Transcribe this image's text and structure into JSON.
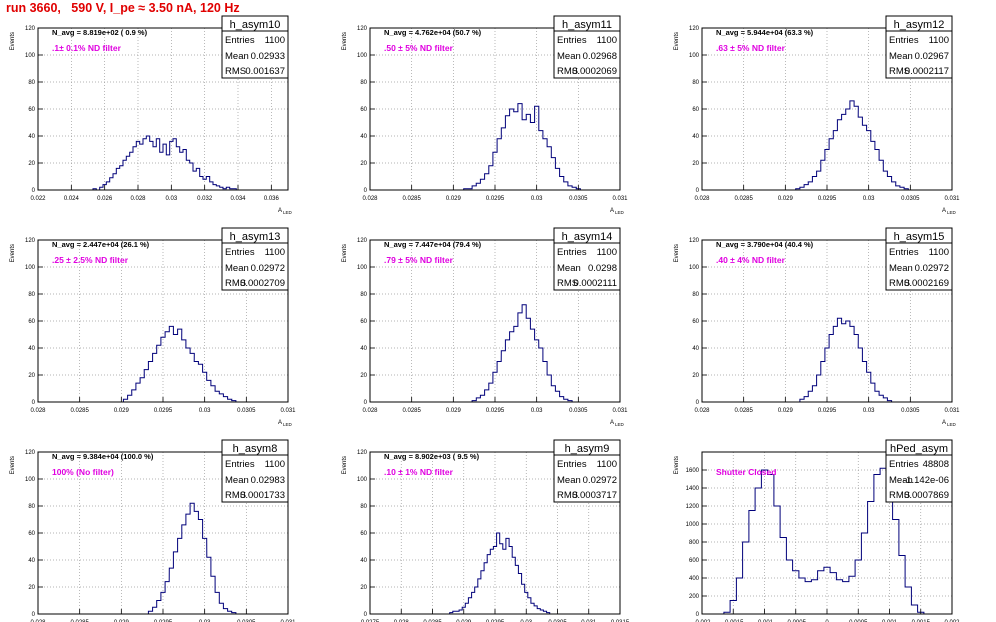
{
  "title": "run 3660,   590 V, I_pe ≈ 3.50 nA, 120 Hz",
  "axis_units": {
    "y": "Events",
    "x_main": "A",
    "x_sub": "LED"
  },
  "stat_labels": {
    "entries": "Entries",
    "mean": "Mean",
    "rms": "RMS"
  },
  "colors": {
    "title": "#e00000",
    "filter_text": "#e000e0",
    "hist": "#00007a",
    "frame": "#000000",
    "grid": "#9a9a9a"
  },
  "chart_data": [
    {
      "type": "bar",
      "name": "h_asym10",
      "annot": "N_avg = 8.819e+02 ( 0.9 %)",
      "filter": ".1± 0.1% ND filter",
      "entries": "1100",
      "mean": "0.02933",
      "rms": "0.001637",
      "xlim": [
        0.022,
        0.037
      ],
      "ylim": [
        0,
        120
      ],
      "xticks": [
        "0.022",
        "0.024",
        "0.026",
        "0.028",
        "0.03",
        "0.032",
        "0.034",
        "0.036"
      ],
      "yticks": [
        "0",
        "20",
        "40",
        "60",
        "80",
        "100",
        "120"
      ],
      "bins": [
        [
          0.0254,
          1
        ],
        [
          0.0256,
          0
        ],
        [
          0.0258,
          2
        ],
        [
          0.026,
          4
        ],
        [
          0.0262,
          6
        ],
        [
          0.0264,
          9
        ],
        [
          0.0266,
          12
        ],
        [
          0.0268,
          16
        ],
        [
          0.027,
          18
        ],
        [
          0.0272,
          22
        ],
        [
          0.0274,
          25
        ],
        [
          0.0276,
          28
        ],
        [
          0.0278,
          32
        ],
        [
          0.028,
          36
        ],
        [
          0.0282,
          34
        ],
        [
          0.0284,
          38
        ],
        [
          0.0286,
          40
        ],
        [
          0.0288,
          36
        ],
        [
          0.029,
          32
        ],
        [
          0.0292,
          38
        ],
        [
          0.0294,
          28
        ],
        [
          0.0296,
          34
        ],
        [
          0.0298,
          26
        ],
        [
          0.03,
          36
        ],
        [
          0.0302,
          38
        ],
        [
          0.0304,
          32
        ],
        [
          0.0306,
          28
        ],
        [
          0.0308,
          30
        ],
        [
          0.031,
          22
        ],
        [
          0.0312,
          20
        ],
        [
          0.0314,
          14
        ],
        [
          0.0316,
          16
        ],
        [
          0.0318,
          10
        ],
        [
          0.032,
          8
        ],
        [
          0.0322,
          10
        ],
        [
          0.0324,
          6
        ],
        [
          0.0326,
          4
        ],
        [
          0.0328,
          3
        ],
        [
          0.033,
          2
        ],
        [
          0.0332,
          1
        ],
        [
          0.0334,
          2
        ],
        [
          0.0336,
          1
        ],
        [
          0.0338,
          1
        ],
        [
          0.034,
          0
        ]
      ]
    },
    {
      "type": "bar",
      "name": "h_asym11",
      "annot": "N_avg = 4.762e+04 (50.7 %)",
      "filter": ".50 ± 5% ND filter",
      "entries": "1100",
      "mean": "0.02968",
      "rms": "0.0002069",
      "xlim": [
        0.028,
        0.031
      ],
      "ylim": [
        0,
        120
      ],
      "xticks": [
        "0.028",
        "0.0285",
        "0.029",
        "0.0295",
        "0.03",
        "0.0305",
        "0.031"
      ],
      "yticks": [
        "0",
        "20",
        "40",
        "60",
        "80",
        "100",
        "120"
      ],
      "bins": [
        [
          0.02915,
          1
        ],
        [
          0.0292,
          1
        ],
        [
          0.02925,
          3
        ],
        [
          0.0293,
          5
        ],
        [
          0.02935,
          8
        ],
        [
          0.0294,
          12
        ],
        [
          0.02945,
          18
        ],
        [
          0.0295,
          28
        ],
        [
          0.02955,
          38
        ],
        [
          0.0296,
          46
        ],
        [
          0.02965,
          55
        ],
        [
          0.0297,
          60
        ],
        [
          0.02975,
          58
        ],
        [
          0.0298,
          64
        ],
        [
          0.02985,
          52
        ],
        [
          0.0299,
          56
        ],
        [
          0.02995,
          50
        ],
        [
          0.03,
          62
        ],
        [
          0.03005,
          44
        ],
        [
          0.0301,
          38
        ],
        [
          0.03015,
          32
        ],
        [
          0.0302,
          24
        ],
        [
          0.03025,
          16
        ],
        [
          0.0303,
          10
        ],
        [
          0.03035,
          6
        ],
        [
          0.0304,
          3
        ],
        [
          0.03045,
          2
        ],
        [
          0.0305,
          1
        ]
      ]
    },
    {
      "type": "bar",
      "name": "h_asym12",
      "annot": "N_avg = 5.944e+04 (63.3 %)",
      "filter": ".63 ± 5% ND filter",
      "entries": "1100",
      "mean": "0.02967",
      "rms": "0.0002117",
      "xlim": [
        0.028,
        0.031
      ],
      "ylim": [
        0,
        120
      ],
      "xticks": [
        "0.028",
        "0.0285",
        "0.029",
        "0.0295",
        "0.03",
        "0.0305",
        "0.031"
      ],
      "yticks": [
        "0",
        "20",
        "40",
        "60",
        "80",
        "100",
        "120"
      ],
      "bins": [
        [
          0.02915,
          1
        ],
        [
          0.0292,
          2
        ],
        [
          0.02925,
          4
        ],
        [
          0.0293,
          6
        ],
        [
          0.02935,
          10
        ],
        [
          0.0294,
          14
        ],
        [
          0.02945,
          22
        ],
        [
          0.0295,
          30
        ],
        [
          0.02955,
          38
        ],
        [
          0.0296,
          44
        ],
        [
          0.02965,
          52
        ],
        [
          0.0297,
          56
        ],
        [
          0.02975,
          60
        ],
        [
          0.0298,
          66
        ],
        [
          0.02985,
          62
        ],
        [
          0.0299,
          54
        ],
        [
          0.02995,
          48
        ],
        [
          0.03,
          44
        ],
        [
          0.03005,
          36
        ],
        [
          0.0301,
          30
        ],
        [
          0.03015,
          22
        ],
        [
          0.0302,
          14
        ],
        [
          0.03025,
          10
        ],
        [
          0.0303,
          6
        ],
        [
          0.03035,
          3
        ],
        [
          0.0304,
          2
        ],
        [
          0.03045,
          1
        ]
      ]
    },
    {
      "type": "bar",
      "name": "h_asym13",
      "annot": "N_avg = 2.447e+04 (26.1 %)",
      "filter": ".25 ± 2.5% ND filter",
      "entries": "1100",
      "mean": "0.02972",
      "rms": "0.0002709",
      "xlim": [
        0.028,
        0.031
      ],
      "ylim": [
        0,
        120
      ],
      "xticks": [
        "0.028",
        "0.0285",
        "0.029",
        "0.0295",
        "0.03",
        "0.0305",
        "0.031"
      ],
      "yticks": [
        "0",
        "20",
        "40",
        "60",
        "80",
        "100",
        "120"
      ],
      "bins": [
        [
          0.02905,
          2
        ],
        [
          0.0291,
          5
        ],
        [
          0.02915,
          9
        ],
        [
          0.0292,
          14
        ],
        [
          0.02925,
          18
        ],
        [
          0.0293,
          24
        ],
        [
          0.02935,
          30
        ],
        [
          0.0294,
          36
        ],
        [
          0.02945,
          42
        ],
        [
          0.0295,
          48
        ],
        [
          0.02955,
          52
        ],
        [
          0.0296,
          56
        ],
        [
          0.02965,
          50
        ],
        [
          0.0297,
          54
        ],
        [
          0.02975,
          46
        ],
        [
          0.0298,
          40
        ],
        [
          0.02985,
          36
        ],
        [
          0.0299,
          30
        ],
        [
          0.02995,
          28
        ],
        [
          0.03,
          22
        ],
        [
          0.03005,
          16
        ],
        [
          0.0301,
          12
        ],
        [
          0.03015,
          8
        ],
        [
          0.0302,
          6
        ],
        [
          0.03025,
          4
        ],
        [
          0.0303,
          2
        ],
        [
          0.03035,
          1
        ]
      ]
    },
    {
      "type": "bar",
      "name": "h_asym14",
      "annot": "N_avg = 7.447e+04 (79.4 %)",
      "filter": ".79 ± 5% ND filter",
      "entries": "1100",
      "mean": "0.0298",
      "rms": "0.0002111",
      "xlim": [
        0.028,
        0.031
      ],
      "ylim": [
        0,
        120
      ],
      "xticks": [
        "0.028",
        "0.0285",
        "0.029",
        "0.0295",
        "0.03",
        "0.0305",
        "0.031"
      ],
      "yticks": [
        "0",
        "20",
        "40",
        "60",
        "80",
        "100",
        "120"
      ],
      "bins": [
        [
          0.02925,
          1
        ],
        [
          0.0293,
          3
        ],
        [
          0.02935,
          5
        ],
        [
          0.0294,
          9
        ],
        [
          0.02945,
          14
        ],
        [
          0.0295,
          22
        ],
        [
          0.02955,
          30
        ],
        [
          0.0296,
          38
        ],
        [
          0.02965,
          46
        ],
        [
          0.0297,
          52
        ],
        [
          0.02975,
          56
        ],
        [
          0.0298,
          66
        ],
        [
          0.02985,
          72
        ],
        [
          0.0299,
          62
        ],
        [
          0.02995,
          54
        ],
        [
          0.03,
          46
        ],
        [
          0.03005,
          40
        ],
        [
          0.0301,
          30
        ],
        [
          0.03015,
          20
        ],
        [
          0.0302,
          12
        ],
        [
          0.03025,
          8
        ],
        [
          0.0303,
          4
        ],
        [
          0.03035,
          2
        ],
        [
          0.0304,
          1
        ]
      ]
    },
    {
      "type": "bar",
      "name": "h_asym15",
      "annot": "N_avg = 3.790e+04 (40.4 %)",
      "filter": ".40 ± 4% ND filter",
      "entries": "1100",
      "mean": "0.02972",
      "rms": "0.0002169",
      "xlim": [
        0.028,
        0.031
      ],
      "ylim": [
        0,
        120
      ],
      "xticks": [
        "0.028",
        "0.0285",
        "0.029",
        "0.0295",
        "0.03",
        "0.0305",
        "0.031"
      ],
      "yticks": [
        "0",
        "20",
        "40",
        "60",
        "80",
        "100",
        "120"
      ],
      "bins": [
        [
          0.0292,
          2
        ],
        [
          0.02925,
          4
        ],
        [
          0.0293,
          8
        ],
        [
          0.02935,
          12
        ],
        [
          0.0294,
          20
        ],
        [
          0.02945,
          30
        ],
        [
          0.0295,
          40
        ],
        [
          0.02955,
          50
        ],
        [
          0.0296,
          56
        ],
        [
          0.02965,
          62
        ],
        [
          0.0297,
          58
        ],
        [
          0.02975,
          60
        ],
        [
          0.0298,
          56
        ],
        [
          0.02985,
          50
        ],
        [
          0.0299,
          40
        ],
        [
          0.02995,
          30
        ],
        [
          0.03,
          22
        ],
        [
          0.03005,
          14
        ],
        [
          0.0301,
          8
        ],
        [
          0.03015,
          5
        ],
        [
          0.0302,
          3
        ],
        [
          0.03025,
          1
        ]
      ]
    },
    {
      "type": "bar",
      "name": "h_asym8",
      "annot": "N_avg = 9.384e+04 (100.0 %)",
      "filter": "100% (No filter)",
      "entries": "1100",
      "mean": "0.02983",
      "rms": "0.0001733",
      "xlim": [
        0.028,
        0.031
      ],
      "ylim": [
        0,
        120
      ],
      "xticks": [
        "0.028",
        "0.0285",
        "0.029",
        "0.0295",
        "0.03",
        "0.0305",
        "0.031"
      ],
      "yticks": [
        "0",
        "20",
        "40",
        "60",
        "80",
        "100",
        "120"
      ],
      "bins": [
        [
          0.02935,
          2
        ],
        [
          0.0294,
          5
        ],
        [
          0.02945,
          10
        ],
        [
          0.0295,
          16
        ],
        [
          0.02955,
          24
        ],
        [
          0.0296,
          34
        ],
        [
          0.02965,
          46
        ],
        [
          0.0297,
          56
        ],
        [
          0.02975,
          66
        ],
        [
          0.0298,
          74
        ],
        [
          0.02985,
          82
        ],
        [
          0.0299,
          76
        ],
        [
          0.02995,
          70
        ],
        [
          0.03,
          56
        ],
        [
          0.03005,
          42
        ],
        [
          0.0301,
          28
        ],
        [
          0.03015,
          16
        ],
        [
          0.0302,
          8
        ],
        [
          0.03025,
          4
        ],
        [
          0.0303,
          2
        ],
        [
          0.03035,
          1
        ]
      ]
    },
    {
      "type": "bar",
      "name": "h_asym9",
      "annot": "N_avg = 8.902e+03 ( 9.5 %)",
      "filter": ".10 ± 1% ND filter",
      "entries": "1100",
      "mean": "0.02972",
      "rms": "0.0003717",
      "xlim": [
        0.0275,
        0.0315
      ],
      "ylim": [
        0,
        120
      ],
      "xticks": [
        "0.0275",
        "0.028",
        "0.0285",
        "0.029",
        "0.0295",
        "0.03",
        "0.0305",
        "0.031",
        "0.0315"
      ],
      "yticks": [
        "0",
        "20",
        "40",
        "60",
        "80",
        "100",
        "120"
      ],
      "bins": [
        [
          0.0288,
          1
        ],
        [
          0.02885,
          2
        ],
        [
          0.0289,
          2
        ],
        [
          0.02895,
          3
        ],
        [
          0.029,
          5
        ],
        [
          0.02905,
          8
        ],
        [
          0.0291,
          12
        ],
        [
          0.02915,
          16
        ],
        [
          0.0292,
          20
        ],
        [
          0.02925,
          26
        ],
        [
          0.0293,
          32
        ],
        [
          0.02935,
          38
        ],
        [
          0.0294,
          44
        ],
        [
          0.02945,
          48
        ],
        [
          0.0295,
          50
        ],
        [
          0.02955,
          60
        ],
        [
          0.0296,
          52
        ],
        [
          0.02965,
          48
        ],
        [
          0.0297,
          56
        ],
        [
          0.02975,
          50
        ],
        [
          0.0298,
          42
        ],
        [
          0.02985,
          36
        ],
        [
          0.0299,
          30
        ],
        [
          0.02995,
          22
        ],
        [
          0.03,
          16
        ],
        [
          0.03005,
          12
        ],
        [
          0.0301,
          8
        ],
        [
          0.03015,
          6
        ],
        [
          0.0302,
          4
        ],
        [
          0.03025,
          3
        ],
        [
          0.0303,
          2
        ],
        [
          0.03035,
          1
        ]
      ]
    },
    {
      "type": "bar",
      "name": "hPed_asym",
      "annot": "",
      "filter": "Shutter Closed",
      "entries": "48808",
      "mean": "-1.142e-06",
      "rms": "0.0007869",
      "xlim": [
        -0.002,
        0.002
      ],
      "ylim": [
        0,
        1800
      ],
      "xticks": [
        "-0.002",
        "-0.0015",
        "-0.001",
        "-0.0005",
        "0",
        "0.0005",
        "0.001",
        "0.0015",
        "0.002"
      ],
      "yticks": [
        "0",
        "200",
        "400",
        "600",
        "800",
        "1000",
        "1200",
        "1400",
        "1600"
      ],
      "bins": [
        [
          -0.0016,
          20
        ],
        [
          -0.0015,
          150
        ],
        [
          -0.0014,
          400
        ],
        [
          -0.0013,
          800
        ],
        [
          -0.0012,
          1150
        ],
        [
          -0.0011,
          1400
        ],
        [
          -0.001,
          1600
        ],
        [
          -0.0009,
          1550
        ],
        [
          -0.0008,
          1200
        ],
        [
          -0.0007,
          850
        ],
        [
          -0.0006,
          600
        ],
        [
          -0.0005,
          480
        ],
        [
          -0.0004,
          400
        ],
        [
          -0.0003,
          360
        ],
        [
          -0.0002,
          380
        ],
        [
          -0.0001,
          480
        ],
        [
          0.0,
          520
        ],
        [
          0.0001,
          460
        ],
        [
          0.0002,
          380
        ],
        [
          0.0003,
          360
        ],
        [
          0.0004,
          420
        ],
        [
          0.0005,
          600
        ],
        [
          0.0006,
          900
        ],
        [
          0.0007,
          1250
        ],
        [
          0.0008,
          1550
        ],
        [
          0.0009,
          1620
        ],
        [
          0.001,
          1400
        ],
        [
          0.0011,
          1050
        ],
        [
          0.0012,
          650
        ],
        [
          0.0013,
          300
        ],
        [
          0.0014,
          100
        ],
        [
          0.0015,
          20
        ]
      ]
    }
  ]
}
